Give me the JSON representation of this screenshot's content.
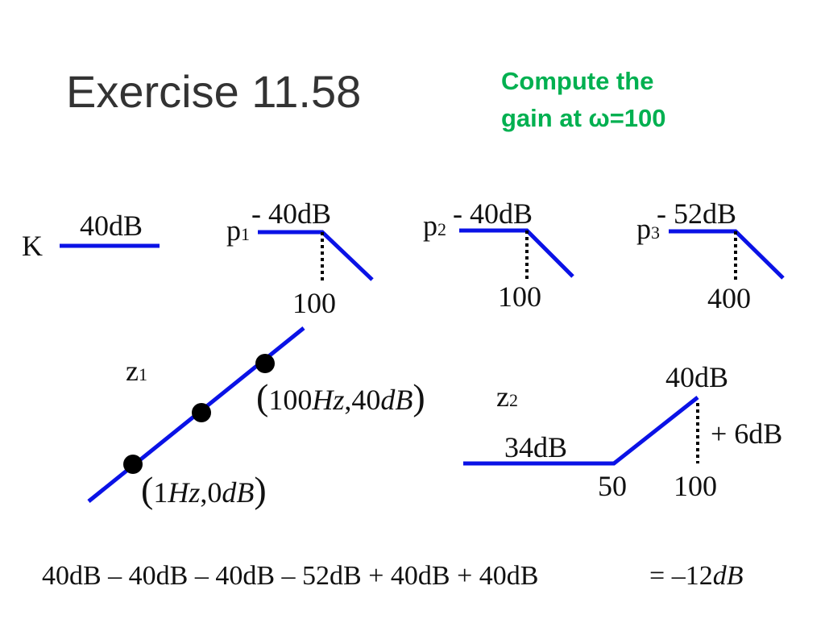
{
  "title": "Exercise 11.58",
  "task": {
    "line1": "Compute the",
    "line2": "gain at ω=100"
  },
  "colors": {
    "accent": "#0a12e6",
    "task_text": "#00b050",
    "title_text": "#333333"
  },
  "k_block": {
    "symbol": "K",
    "gain": "40dB"
  },
  "p1_block": {
    "symbol": "p",
    "subscript": "1",
    "gain": "- 40dB",
    "corner": "100"
  },
  "p2_block": {
    "symbol": "p",
    "subscript": "2",
    "gain": "- 40dB",
    "corner": "100"
  },
  "p3_block": {
    "symbol": "p",
    "subscript": "3",
    "gain": "- 52dB",
    "corner": "400"
  },
  "z1_block": {
    "symbol": "z",
    "subscript": "1",
    "point_high": {
      "freq": "100",
      "freq_unit": "Hz",
      "gain": "40",
      "gain_unit": "dB"
    },
    "point_low": {
      "freq": "1",
      "freq_unit": "Hz",
      "gain": "0",
      "gain_unit": "dB"
    }
  },
  "z2_block": {
    "symbol": "z",
    "subscript": "2",
    "flat_gain": "34dB",
    "top_gain": "40dB",
    "increment": "+ 6dB",
    "corner": "50",
    "eval_freq": "100"
  },
  "equation": {
    "terms": "40dB – 40dB – 40dB – 52dB + 40dB + 40dB",
    "equals": "=",
    "result_num": "–12",
    "result_unit": "dB"
  }
}
